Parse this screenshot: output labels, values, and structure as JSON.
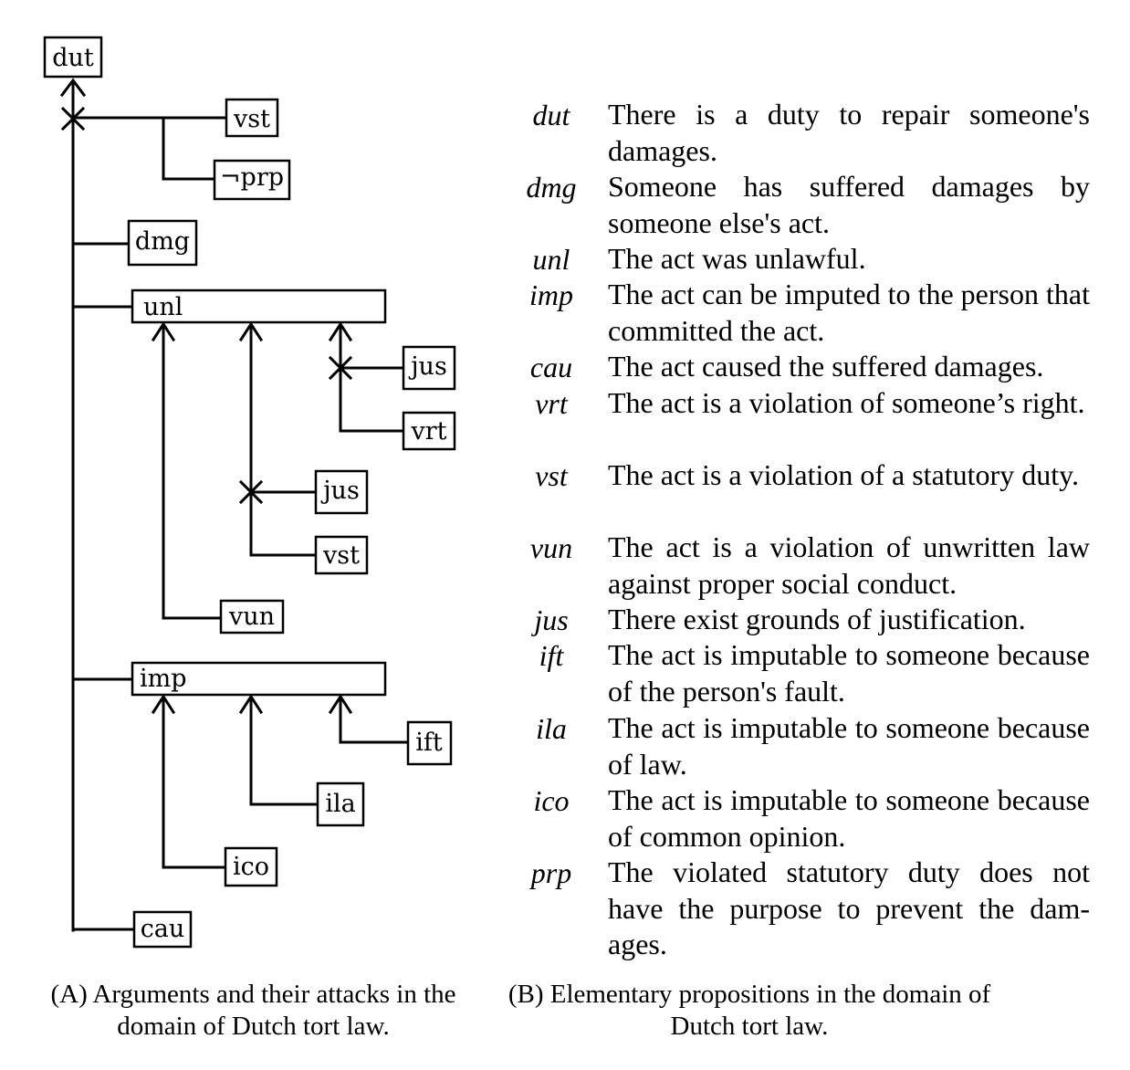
{
  "diagram": {
    "nodes": {
      "dut": "dut",
      "vst_top": "vst",
      "not_prp": "¬prp",
      "dmg": "dmg",
      "unl": "unl",
      "jus_right": "jus",
      "vrt": "vrt",
      "jus_mid": "jus",
      "vst_mid": "vst",
      "vun": "vun",
      "imp": "imp",
      "ift": "ift",
      "ila": "ila",
      "ico": "ico",
      "cau": "cau"
    }
  },
  "propositions": [
    {
      "term": "dut",
      "definition": "There is a duty to repair someone's damages."
    },
    {
      "term": "dmg",
      "definition": "Someone has suffered damages by someone else's act."
    },
    {
      "term": "unl",
      "definition": "The act was unlawful."
    },
    {
      "term": "imp",
      "definition": "The act can be imputed to the person that committed the act."
    },
    {
      "term": "cau",
      "definition": "The act caused the suffered damages."
    },
    {
      "term": "vrt",
      "definition": "The act is a violation of someone’s right."
    },
    {
      "term": "vst",
      "definition": "The act is a violation of a statutory duty."
    },
    {
      "term": "vun",
      "definition": "The act is a violation of unwritten law against proper social conduct."
    },
    {
      "term": "jus",
      "definition": "There exist grounds of justification."
    },
    {
      "term": "ift",
      "definition": "The act is imputable to someone be­cause of the person's fault."
    },
    {
      "term": "ila",
      "definition": "The act is imputable to someone be­cause of law."
    },
    {
      "term": "ico",
      "definition": "The act is imputable to someone be­cause of common opinion."
    },
    {
      "term": "prp",
      "definition": "The violated statutory duty does not have the purpose to prevent the dam­ages."
    }
  ],
  "captions": {
    "a": "(A) Arguments and their attacks in the domain of Dutch tort law.",
    "b": "(B) Elementary propositions in the do­main of Dutch tort law."
  }
}
